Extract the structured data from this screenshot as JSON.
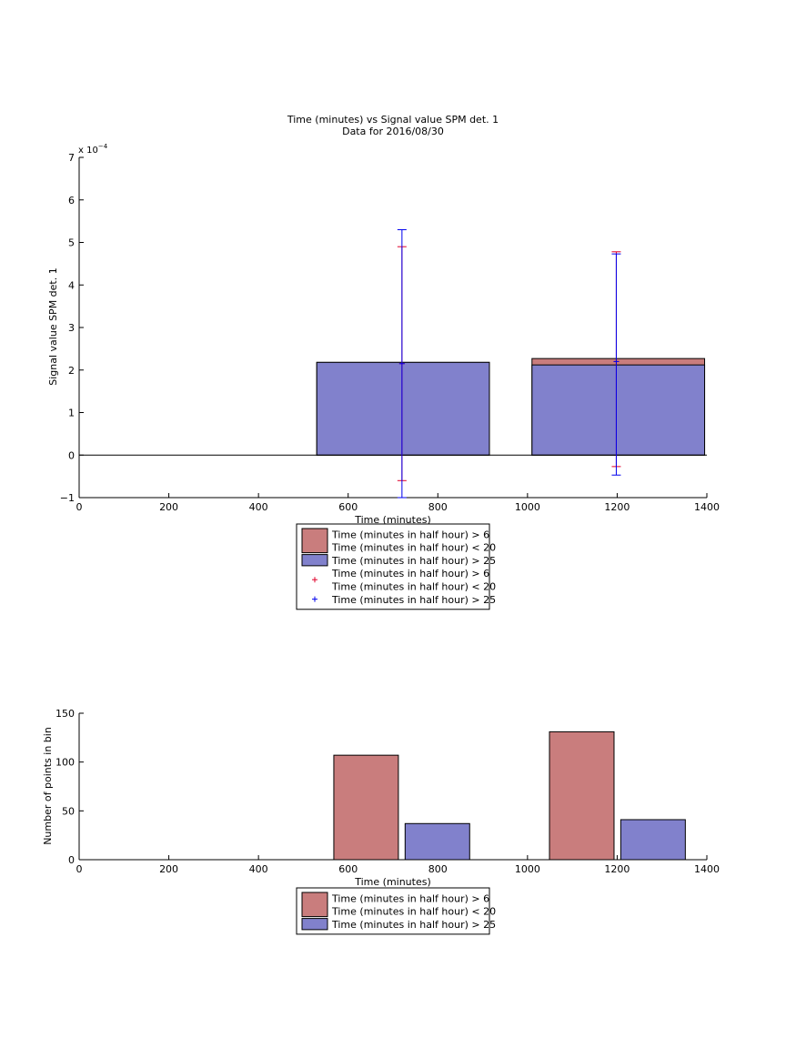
{
  "chart_data": [
    {
      "type": "bar",
      "title": "Time (minutes) vs Signal value SPM det. 1",
      "subtitle": "Data for 2016/08/30",
      "xlabel": "Time (minutes)",
      "ylabel": "Signal value SPM det. 1",
      "y_multiplier": "x 10",
      "y_exponent": "−4",
      "xlim": [
        0,
        1400
      ],
      "ylim": [
        -1,
        7
      ],
      "xticks": [
        0,
        200,
        400,
        600,
        800,
        1000,
        1200,
        1400
      ],
      "yticks": [
        -1,
        0,
        1,
        2,
        3,
        4,
        5,
        6,
        7
      ],
      "grid": false,
      "legend_position": "bottom-outside",
      "colors": {
        "series1": "#c97d7d",
        "series2": "#8181cc",
        "error_series1": "#e0002a",
        "error_series2": "#0000ee"
      },
      "bars": [
        {
          "x_start": 530,
          "x_end": 915,
          "value_1": 2.18,
          "value_2": 2.18
        },
        {
          "x_start": 1010,
          "x_end": 1395,
          "value_1": 2.27,
          "value_2": 2.12
        }
      ],
      "errorbars": [
        {
          "series": 1,
          "x": 720,
          "y": 2.15,
          "low": -0.6,
          "high": 4.9
        },
        {
          "series": 2,
          "x": 720,
          "y": 2.15,
          "low": -1.0,
          "high": 5.3
        },
        {
          "series": 1,
          "x": 1198,
          "y": 2.2,
          "low": -0.27,
          "high": 4.78
        },
        {
          "series": 2,
          "x": 1198,
          "y": 2.2,
          "low": -0.47,
          "high": 4.73
        }
      ],
      "legend": [
        {
          "kind": "bar",
          "color": "#c97d7d",
          "lines": [
            "Time (minutes in half hour) > 6",
            "Time (minutes in half hour) < 20"
          ]
        },
        {
          "kind": "bar",
          "color": "#8181cc",
          "lines": [
            "Time (minutes in half hour) > 25"
          ]
        },
        {
          "kind": "marker",
          "color": "#e0002a",
          "lines": [
            "Time (minutes in half hour) > 6",
            "Time (minutes in half hour) < 20"
          ]
        },
        {
          "kind": "marker",
          "color": "#0000ee",
          "lines": [
            "Time (minutes in half hour) > 25"
          ]
        }
      ]
    },
    {
      "type": "bar",
      "title": "",
      "xlabel": "Time (minutes)",
      "ylabel": "Number of points in bin",
      "xlim": [
        0,
        1400
      ],
      "ylim": [
        0,
        150
      ],
      "xticks": [
        0,
        200,
        400,
        600,
        800,
        1000,
        1200,
        1400
      ],
      "yticks": [
        0,
        50,
        100,
        150
      ],
      "grid": false,
      "legend_position": "bottom-outside",
      "bars": [
        {
          "x_start": 568,
          "x_end": 712,
          "value": 107,
          "color": "#c97d7d"
        },
        {
          "x_start": 727,
          "x_end": 871,
          "value": 37,
          "color": "#8181cc"
        },
        {
          "x_start": 1049,
          "x_end": 1193,
          "value": 131,
          "color": "#c97d7d"
        },
        {
          "x_start": 1208,
          "x_end": 1352,
          "value": 41,
          "color": "#8181cc"
        }
      ],
      "legend": [
        {
          "kind": "bar",
          "color": "#c97d7d",
          "lines": [
            "Time (minutes in half hour) > 6",
            "Time (minutes in half hour) < 20"
          ]
        },
        {
          "kind": "bar",
          "color": "#8181cc",
          "lines": [
            "Time (minutes in half hour) > 25"
          ]
        }
      ]
    }
  ]
}
